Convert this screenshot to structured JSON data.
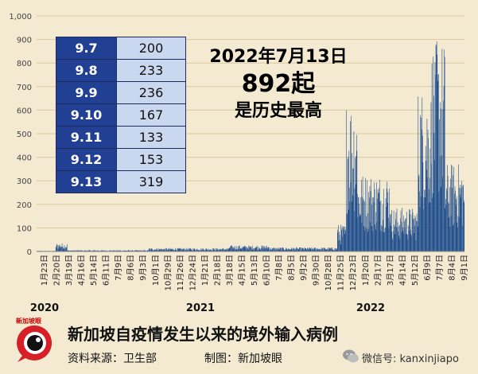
{
  "chart_data": {
    "type": "bar",
    "title": "新加坡自疫情发生以来的境外输入病例",
    "xlabel": "",
    "ylabel": "",
    "ylim": [
      0,
      1000
    ],
    "y_ticks": [
      0,
      100,
      200,
      300,
      400,
      500,
      600,
      700,
      800,
      900,
      1000
    ],
    "y_tick_labels": [
      "0",
      "100",
      "200",
      "300",
      "400",
      "500",
      "600",
      "700",
      "800",
      "900",
      "1,000"
    ],
    "x_start": "2020-01-23",
    "x_end": "2022-09-13",
    "x_tick_labels": [
      "1月23日",
      "2月20日",
      "3月19日",
      "4月16日",
      "5月14日",
      "6月11日",
      "7月9日",
      "8月6日",
      "9月3日",
      "10月1日",
      "10月29日",
      "11月26日",
      "12月24日",
      "1月21日",
      "2月18日",
      "3月18日",
      "4月15日",
      "5月13日",
      "6月10日",
      "7月8日",
      "8月5日",
      "9月2日",
      "9月30日",
      "10月28日",
      "11月25日",
      "12月23日",
      "1月20日",
      "2月17日",
      "3月17日",
      "4月14日",
      "5月12日",
      "6月9日",
      "7月7日",
      "8月4日",
      "9月1日"
    ],
    "year_labels": [
      "2020",
      "2021",
      "2022"
    ],
    "grid": true,
    "bar_color": "#1f4e8c",
    "series": [
      {
        "values_by_period": [
          {
            "from": "2020-01-23",
            "to": "2020-03-05",
            "value": 2
          },
          {
            "from": "2020-03-06",
            "to": "2020-03-31",
            "value": 25
          },
          {
            "from": "2020-04-01",
            "to": "2020-09-30",
            "value": 4
          },
          {
            "from": "2020-10-01",
            "to": "2021-03-31",
            "value": 10
          },
          {
            "from": "2021-04-01",
            "to": "2021-06-30",
            "value": 18
          },
          {
            "from": "2021-07-01",
            "to": "2021-11-30",
            "value": 12
          },
          {
            "from": "2021-12-01",
            "to": "2021-12-20",
            "value": 80
          },
          {
            "from": "2021-12-21",
            "to": "2022-01-15",
            "value": 450
          },
          {
            "from": "2022-01-16",
            "to": "2022-03-31",
            "value": 230
          },
          {
            "from": "2022-04-01",
            "to": "2022-05-31",
            "value": 130
          },
          {
            "from": "2022-06-01",
            "to": "2022-06-30",
            "value": 480
          },
          {
            "from": "2022-07-01",
            "to": "2022-07-31",
            "value": 620
          },
          {
            "from": "2022-08-01",
            "to": "2022-09-13",
            "value": 260
          }
        ],
        "peak": {
          "date": "2022-07-13",
          "value": 892
        }
      }
    ]
  },
  "table": {
    "rows": [
      {
        "date": "9.7",
        "value": "200"
      },
      {
        "date": "9.8",
        "value": "233"
      },
      {
        "date": "9.9",
        "value": "236"
      },
      {
        "date": "9.10",
        "value": "167"
      },
      {
        "date": "9.11",
        "value": "133"
      },
      {
        "date": "9.12",
        "value": "153"
      },
      {
        "date": "9.13",
        "value": "319"
      }
    ]
  },
  "headline": {
    "line1": "2022年7月13日",
    "line2": "892起",
    "line3": "是历史最高"
  },
  "footer": {
    "title": "新加坡自疫情发生以来的境外输入病例",
    "source": "资料来源：卫生部",
    "credit": "制图：新加坡眼",
    "wechat": "微信号: kanxinjiapo",
    "logo_text": "新加坡眼"
  }
}
